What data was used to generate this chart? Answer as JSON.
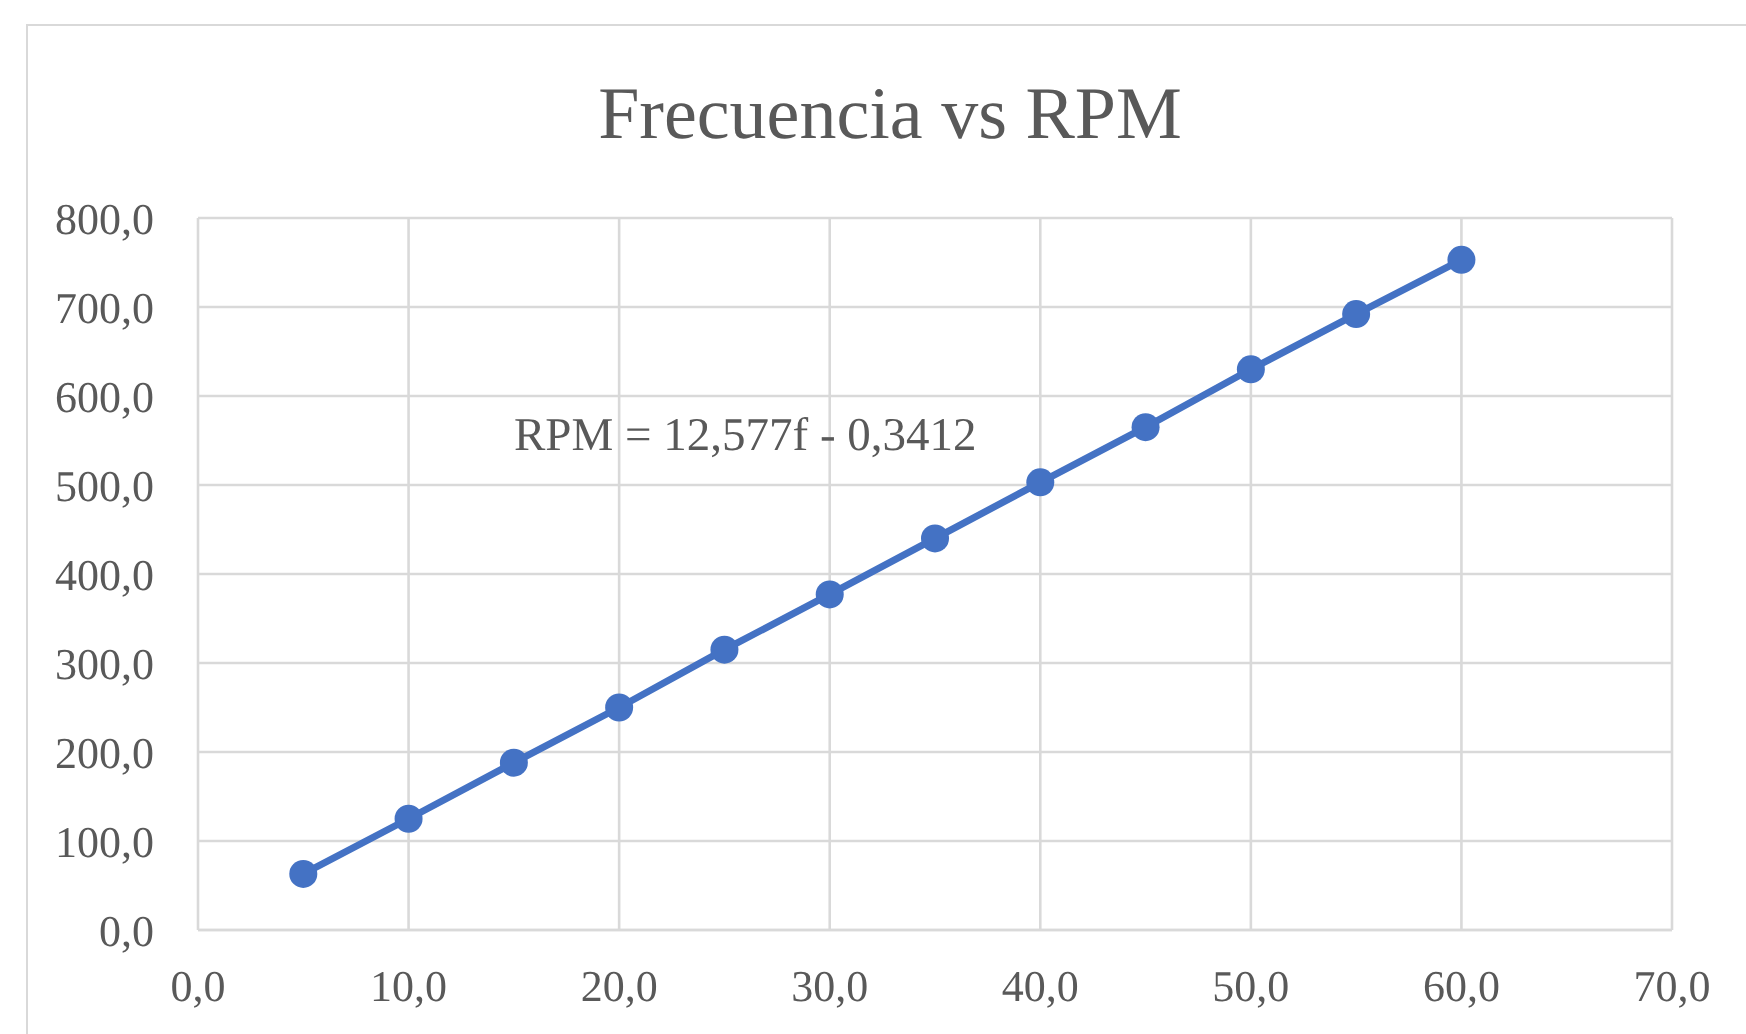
{
  "chart_data": {
    "type": "line",
    "title": "Frecuencia vs RPM",
    "x": [
      5,
      10,
      15,
      20,
      25,
      30,
      35,
      40,
      45,
      50,
      55,
      60
    ],
    "series": [
      {
        "color": "#4472c4",
        "values": [
          63,
          125,
          188,
          250,
          315,
          377,
          440,
          503,
          565,
          630,
          692,
          753
        ]
      }
    ],
    "xlim": [
      0,
      70
    ],
    "xticks": [
      {
        "value": 0,
        "label": "0,0"
      },
      {
        "value": 10,
        "label": "10,0"
      },
      {
        "value": 20,
        "label": "20,0"
      },
      {
        "value": 30,
        "label": "30,0"
      },
      {
        "value": 40,
        "label": "40,0"
      },
      {
        "value": 50,
        "label": "50,0"
      },
      {
        "value": 60,
        "label": "60,0"
      },
      {
        "value": 70,
        "label": "70,0"
      }
    ],
    "ylim": [
      0,
      800
    ],
    "yticks": [
      {
        "value": 0,
        "label": "0,0"
      },
      {
        "value": 100,
        "label": "100,0"
      },
      {
        "value": 200,
        "label": "200,0"
      },
      {
        "value": 300,
        "label": "300,0"
      },
      {
        "value": 400,
        "label": "400,0"
      },
      {
        "value": 500,
        "label": "500,0"
      },
      {
        "value": 600,
        "label": "600,0"
      },
      {
        "value": 700,
        "label": "700,0"
      },
      {
        "value": 800,
        "label": "800,0"
      }
    ],
    "annotations": [
      "RPM = 12,577f - 0,3412"
    ],
    "grid": true,
    "marker": "circle",
    "line_style": "solid"
  }
}
